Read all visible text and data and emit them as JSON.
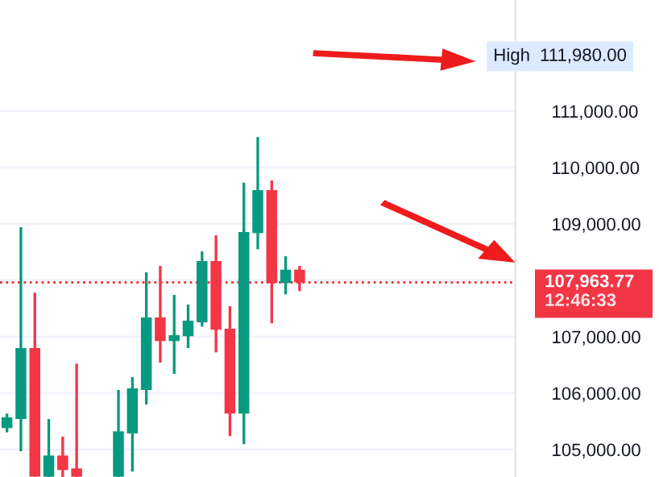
{
  "chart_data": {
    "type": "candlestick",
    "categories": [
      null,
      null,
      null,
      null,
      null,
      null,
      null,
      null,
      null,
      null,
      null,
      null,
      null,
      null,
      null,
      null,
      null,
      null,
      null,
      null,
      null,
      null,
      null,
      null,
      null,
      null,
      null,
      null,
      null,
      null,
      null,
      null,
      null,
      null,
      null,
      null,
      null
    ],
    "ohlc": [
      [
        105381,
        105638,
        105305,
        105571
      ],
      [
        105543,
        108943,
        104971,
        106800
      ],
      [
        106800,
        107781,
        104515,
        104520
      ],
      [
        104520,
        105543,
        104515,
        104895
      ],
      [
        104895,
        105229,
        104515,
        104638
      ],
      [
        104667,
        106524,
        104515,
        104520
      ],
      null,
      null,
      [
        104520,
        106057,
        104515,
        105324
      ],
      [
        105286,
        106286,
        104610,
        106086
      ],
      [
        106057,
        108143,
        105800,
        107343
      ],
      [
        107343,
        108257,
        106543,
        106924
      ],
      [
        106924,
        107743,
        106343,
        107029
      ],
      [
        107010,
        107572,
        106800,
        107286
      ],
      [
        107257,
        108514,
        107181,
        108343
      ],
      [
        108343,
        108800,
        106724,
        107124
      ],
      [
        107143,
        107543,
        105238,
        105638
      ],
      [
        105638,
        109733,
        105095,
        108857
      ],
      [
        108838,
        110543,
        108552,
        109600
      ],
      [
        109600,
        109771,
        107238,
        107952
      ],
      [
        107952,
        108428,
        107752,
        108190
      ],
      [
        108190,
        108257,
        107810,
        107963.77
      ],
      null,
      null,
      null,
      null,
      null,
      null,
      null,
      null,
      null,
      null,
      null,
      null,
      null,
      null,
      null
    ],
    "colors": [
      "#089981",
      "#089981",
      "#f23645",
      "#089981",
      "#f23645",
      "#f23645",
      null,
      null,
      "#089981",
      "#089981",
      "#089981",
      "#f23645",
      "#089981",
      "#089981",
      "#089981",
      "#f23645",
      "#f23645",
      "#089981",
      "#089981",
      "#f23645",
      "#089981",
      "#f23645",
      null,
      null,
      null,
      null,
      null,
      null,
      null,
      null,
      null,
      null,
      null,
      null,
      null,
      null,
      null
    ],
    "ylim": [
      104514,
      112971
    ],
    "yticks": [
      {
        "value": 105000,
        "label": "105,000.00"
      },
      {
        "value": 106000,
        "label": "106,000.00"
      },
      {
        "value": 107000,
        "label": "107,000.00"
      },
      {
        "value": 108000,
        "label": null
      },
      {
        "value": 109000,
        "label": "109,000.00"
      },
      {
        "value": 110000,
        "label": "110,000.00"
      },
      {
        "value": 111000,
        "label": "111,000.00"
      }
    ],
    "grid": "y",
    "tick_labels": "y",
    "ref_lines": [
      {
        "axis": "y",
        "value": 107963.77,
        "label": "107,963.77",
        "color": "#f23645",
        "line_style": "dotted"
      }
    ],
    "annotations": [
      "12:46:33",
      "High",
      "111,980.00"
    ]
  }
}
